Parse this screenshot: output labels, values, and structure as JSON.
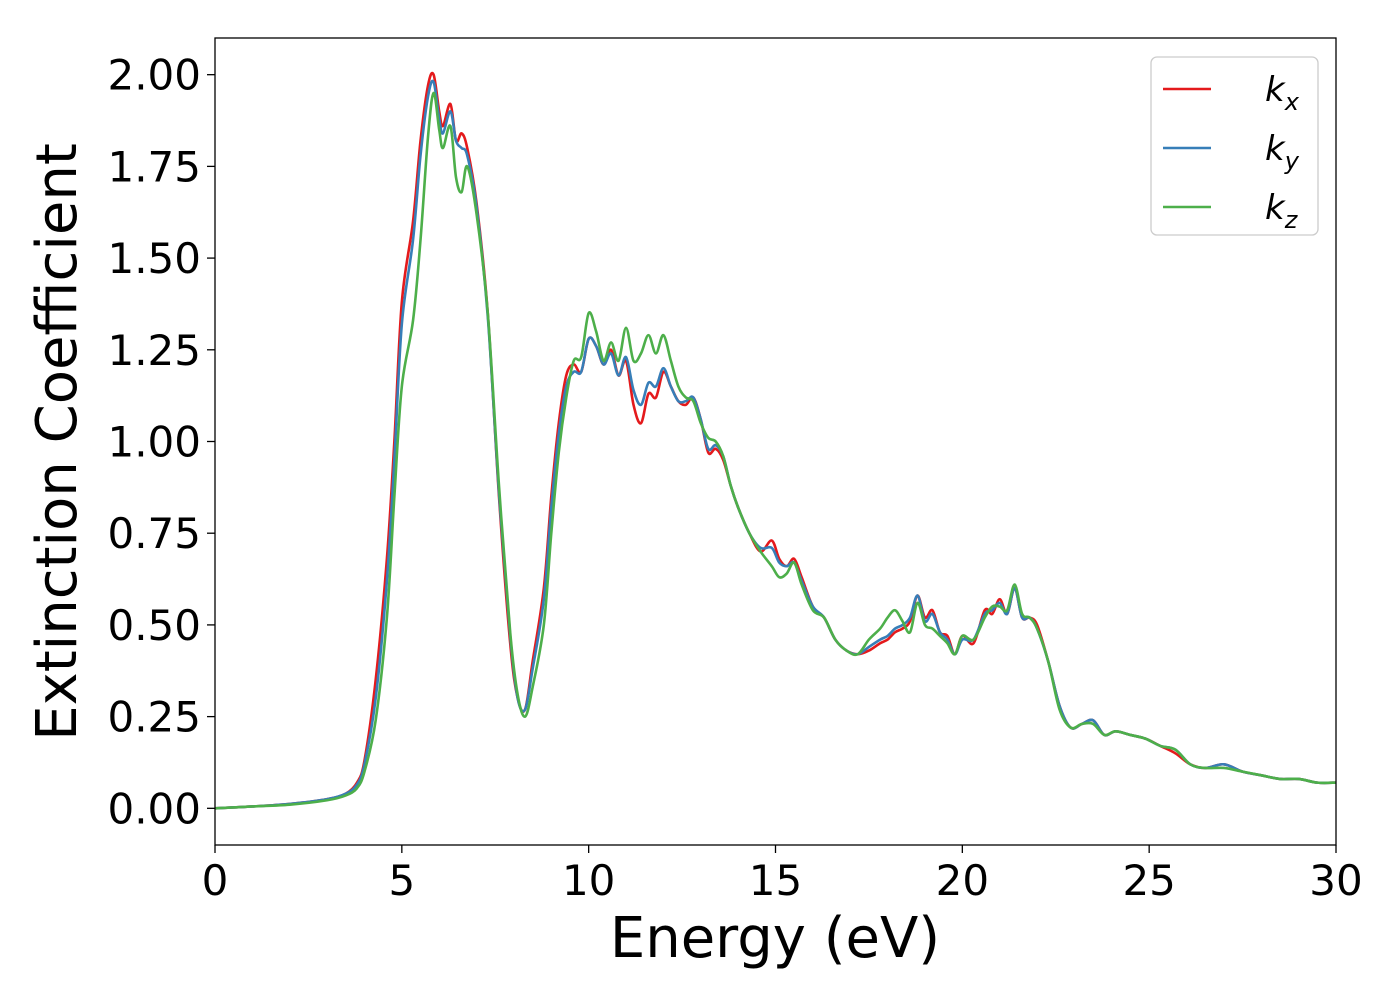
{
  "chart_data": {
    "type": "line",
    "xlabel": "Energy (eV)",
    "ylabel": "Extinction Coefficient",
    "xlim": [
      0,
      30
    ],
    "ylim": [
      -0.1,
      2.1
    ],
    "xticks": [
      0,
      5,
      10,
      15,
      20,
      25,
      30
    ],
    "xtick_labels": [
      "0",
      "5",
      "10",
      "15",
      "20",
      "25",
      "30"
    ],
    "yticks": [
      0.0,
      0.25,
      0.5,
      0.75,
      1.0,
      1.25,
      1.5,
      1.75,
      2.0
    ],
    "ytick_labels": [
      "0.00",
      "0.25",
      "0.50",
      "0.75",
      "1.00",
      "1.25",
      "1.50",
      "1.75",
      "2.00"
    ],
    "grid": false,
    "legend_position": "top-right",
    "series": [
      {
        "name": "k",
        "subscript": "x",
        "color": "#e41a1c",
        "x": [
          0,
          1,
          2,
          3,
          3.5,
          3.8,
          4.0,
          4.3,
          4.6,
          4.8,
          5.0,
          5.3,
          5.5,
          5.7,
          5.85,
          6.0,
          6.1,
          6.3,
          6.45,
          6.6,
          6.75,
          7.0,
          7.3,
          7.6,
          7.9,
          8.1,
          8.3,
          8.5,
          8.8,
          9.0,
          9.2,
          9.4,
          9.6,
          9.8,
          10.0,
          10.2,
          10.4,
          10.6,
          10.8,
          11.0,
          11.2,
          11.4,
          11.6,
          11.8,
          12.0,
          12.2,
          12.4,
          12.6,
          12.8,
          13.0,
          13.2,
          13.4,
          13.6,
          13.8,
          14.0,
          14.3,
          14.6,
          14.9,
          15.1,
          15.3,
          15.5,
          15.7,
          16.0,
          16.3,
          16.6,
          16.9,
          17.2,
          17.5,
          17.8,
          18.0,
          18.2,
          18.4,
          18.6,
          18.8,
          19.0,
          19.2,
          19.4,
          19.6,
          19.8,
          20.0,
          20.3,
          20.6,
          20.8,
          21.0,
          21.2,
          21.4,
          21.6,
          21.8,
          22.0,
          22.3,
          22.6,
          22.9,
          23.2,
          23.5,
          23.8,
          24.1,
          24.5,
          24.9,
          25.3,
          25.7,
          26.1,
          26.5,
          27.0,
          27.5,
          28.0,
          28.5,
          29.0,
          29.5,
          30.0
        ],
        "values": [
          0.0,
          0.005,
          0.012,
          0.025,
          0.04,
          0.07,
          0.13,
          0.35,
          0.68,
          1.0,
          1.38,
          1.6,
          1.82,
          1.97,
          2.0,
          1.9,
          1.86,
          1.92,
          1.82,
          1.84,
          1.8,
          1.65,
          1.35,
          0.85,
          0.45,
          0.3,
          0.27,
          0.4,
          0.6,
          0.85,
          1.05,
          1.18,
          1.21,
          1.19,
          1.28,
          1.26,
          1.21,
          1.25,
          1.18,
          1.22,
          1.1,
          1.05,
          1.13,
          1.12,
          1.19,
          1.15,
          1.11,
          1.1,
          1.12,
          1.06,
          0.97,
          0.98,
          0.95,
          0.88,
          0.82,
          0.75,
          0.7,
          0.73,
          0.68,
          0.66,
          0.68,
          0.63,
          0.55,
          0.52,
          0.46,
          0.43,
          0.42,
          0.43,
          0.45,
          0.46,
          0.48,
          0.49,
          0.51,
          0.58,
          0.52,
          0.54,
          0.48,
          0.47,
          0.42,
          0.47,
          0.45,
          0.54,
          0.53,
          0.57,
          0.53,
          0.6,
          0.52,
          0.52,
          0.5,
          0.4,
          0.28,
          0.22,
          0.23,
          0.24,
          0.2,
          0.21,
          0.2,
          0.19,
          0.17,
          0.15,
          0.12,
          0.11,
          0.12,
          0.1,
          0.09,
          0.08,
          0.08,
          0.07,
          0.07
        ]
      },
      {
        "name": "k",
        "subscript": "y",
        "color": "#377eb8",
        "x": [
          0,
          1,
          2,
          3,
          3.5,
          3.8,
          4.0,
          4.3,
          4.6,
          4.8,
          5.0,
          5.3,
          5.5,
          5.7,
          5.85,
          6.0,
          6.1,
          6.3,
          6.45,
          6.6,
          6.75,
          7.0,
          7.3,
          7.6,
          7.9,
          8.1,
          8.3,
          8.5,
          8.8,
          9.0,
          9.2,
          9.4,
          9.6,
          9.8,
          10.0,
          10.2,
          10.4,
          10.6,
          10.8,
          11.0,
          11.2,
          11.4,
          11.6,
          11.8,
          12.0,
          12.2,
          12.4,
          12.6,
          12.8,
          13.0,
          13.2,
          13.4,
          13.6,
          13.8,
          14.0,
          14.3,
          14.6,
          14.9,
          15.1,
          15.3,
          15.5,
          15.7,
          16.0,
          16.3,
          16.6,
          16.9,
          17.2,
          17.5,
          17.8,
          18.0,
          18.2,
          18.4,
          18.6,
          18.8,
          19.0,
          19.2,
          19.4,
          19.6,
          19.8,
          20.0,
          20.3,
          20.6,
          20.8,
          21.0,
          21.2,
          21.4,
          21.6,
          21.8,
          22.0,
          22.3,
          22.6,
          22.9,
          23.2,
          23.5,
          23.8,
          24.1,
          24.5,
          24.9,
          25.3,
          25.7,
          26.1,
          26.5,
          27.0,
          27.5,
          28.0,
          28.5,
          29.0,
          29.5,
          30.0
        ],
        "values": [
          0.0,
          0.005,
          0.012,
          0.025,
          0.04,
          0.065,
          0.12,
          0.3,
          0.62,
          0.95,
          1.32,
          1.55,
          1.78,
          1.94,
          1.98,
          1.88,
          1.84,
          1.9,
          1.82,
          1.8,
          1.78,
          1.64,
          1.34,
          0.86,
          0.47,
          0.3,
          0.27,
          0.38,
          0.57,
          0.82,
          1.02,
          1.15,
          1.19,
          1.19,
          1.28,
          1.26,
          1.21,
          1.24,
          1.18,
          1.23,
          1.14,
          1.1,
          1.16,
          1.15,
          1.2,
          1.15,
          1.11,
          1.11,
          1.12,
          1.06,
          0.98,
          0.99,
          0.96,
          0.88,
          0.82,
          0.75,
          0.71,
          0.71,
          0.67,
          0.66,
          0.67,
          0.62,
          0.55,
          0.52,
          0.46,
          0.43,
          0.42,
          0.44,
          0.46,
          0.47,
          0.49,
          0.5,
          0.52,
          0.58,
          0.51,
          0.53,
          0.48,
          0.46,
          0.42,
          0.46,
          0.46,
          0.53,
          0.54,
          0.56,
          0.53,
          0.6,
          0.52,
          0.52,
          0.49,
          0.4,
          0.28,
          0.22,
          0.23,
          0.24,
          0.2,
          0.21,
          0.2,
          0.19,
          0.17,
          0.16,
          0.12,
          0.11,
          0.12,
          0.1,
          0.09,
          0.08,
          0.08,
          0.07,
          0.07
        ]
      },
      {
        "name": "k",
        "subscript": "z",
        "color": "#4daf4a",
        "x": [
          0,
          1,
          2,
          3,
          3.5,
          3.8,
          4.0,
          4.3,
          4.6,
          4.8,
          5.0,
          5.3,
          5.5,
          5.7,
          5.85,
          6.0,
          6.1,
          6.3,
          6.45,
          6.6,
          6.75,
          7.0,
          7.3,
          7.6,
          7.9,
          8.1,
          8.3,
          8.5,
          8.8,
          9.0,
          9.2,
          9.4,
          9.6,
          9.8,
          10.0,
          10.2,
          10.4,
          10.6,
          10.8,
          11.0,
          11.2,
          11.4,
          11.6,
          11.8,
          12.0,
          12.2,
          12.4,
          12.6,
          12.8,
          13.0,
          13.2,
          13.4,
          13.6,
          13.8,
          14.0,
          14.3,
          14.6,
          14.9,
          15.1,
          15.3,
          15.5,
          15.7,
          16.0,
          16.3,
          16.6,
          16.9,
          17.2,
          17.5,
          17.8,
          18.0,
          18.2,
          18.4,
          18.6,
          18.8,
          19.0,
          19.2,
          19.4,
          19.6,
          19.8,
          20.0,
          20.3,
          20.6,
          20.8,
          21.0,
          21.2,
          21.4,
          21.6,
          21.8,
          22.0,
          22.3,
          22.6,
          22.9,
          23.2,
          23.5,
          23.8,
          24.1,
          24.5,
          24.9,
          25.3,
          25.7,
          26.1,
          26.5,
          27.0,
          27.5,
          28.0,
          28.5,
          29.0,
          29.5,
          30.0
        ],
        "values": [
          0.0,
          0.005,
          0.01,
          0.022,
          0.035,
          0.055,
          0.1,
          0.24,
          0.52,
          0.85,
          1.15,
          1.33,
          1.55,
          1.83,
          1.95,
          1.85,
          1.8,
          1.86,
          1.72,
          1.68,
          1.75,
          1.62,
          1.35,
          0.88,
          0.48,
          0.31,
          0.25,
          0.33,
          0.5,
          0.75,
          0.97,
          1.12,
          1.22,
          1.23,
          1.35,
          1.3,
          1.22,
          1.27,
          1.22,
          1.31,
          1.22,
          1.24,
          1.29,
          1.24,
          1.29,
          1.22,
          1.15,
          1.12,
          1.11,
          1.05,
          1.01,
          1.0,
          0.96,
          0.88,
          0.82,
          0.75,
          0.7,
          0.66,
          0.63,
          0.64,
          0.67,
          0.61,
          0.54,
          0.52,
          0.46,
          0.43,
          0.42,
          0.46,
          0.49,
          0.52,
          0.54,
          0.51,
          0.48,
          0.56,
          0.5,
          0.49,
          0.47,
          0.45,
          0.42,
          0.47,
          0.46,
          0.52,
          0.55,
          0.55,
          0.54,
          0.61,
          0.53,
          0.52,
          0.49,
          0.4,
          0.27,
          0.22,
          0.23,
          0.23,
          0.2,
          0.21,
          0.2,
          0.19,
          0.17,
          0.16,
          0.12,
          0.11,
          0.11,
          0.1,
          0.09,
          0.08,
          0.08,
          0.07,
          0.07
        ]
      }
    ]
  }
}
